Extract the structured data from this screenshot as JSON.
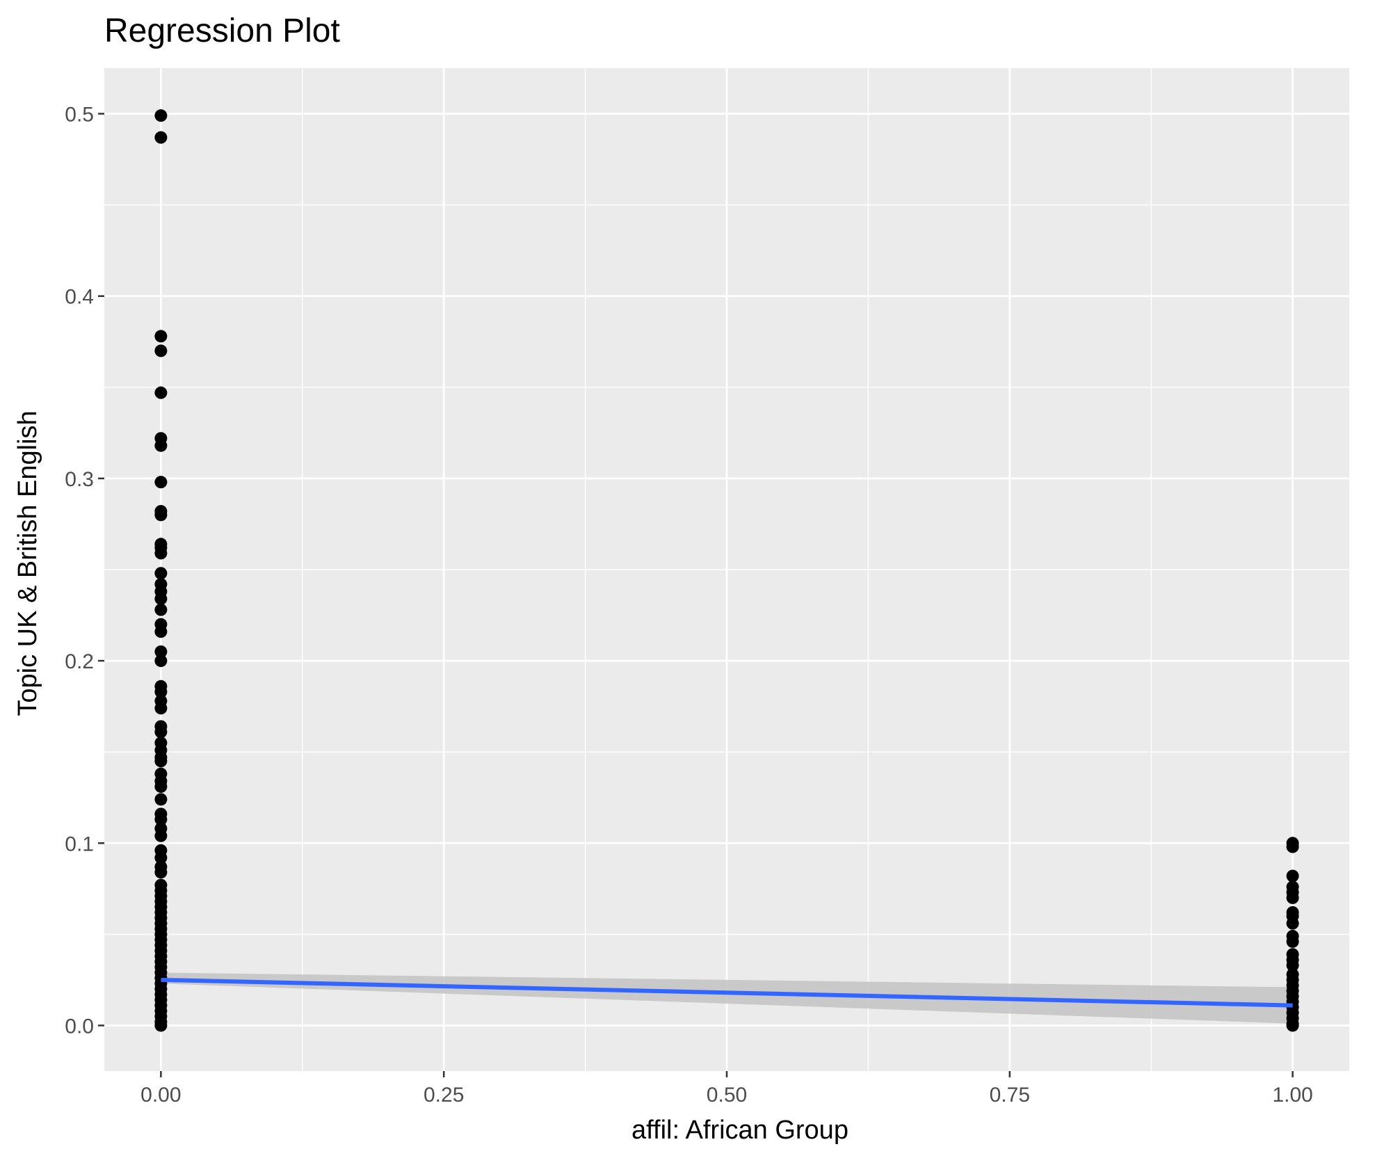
{
  "chart_data": {
    "type": "scatter",
    "title": "Regression Plot",
    "xlabel": "affil: African Group",
    "ylabel": "Topic UK & British English",
    "xlim": [
      -0.05,
      1.05
    ],
    "ylim": [
      -0.025,
      0.525
    ],
    "x_ticks": [
      0.0,
      0.25,
      0.5,
      0.75,
      1.0
    ],
    "x_tick_labels": [
      "0.00",
      "0.25",
      "0.50",
      "0.75",
      "1.00"
    ],
    "y_ticks": [
      0.0,
      0.1,
      0.2,
      0.3,
      0.4,
      0.5
    ],
    "y_tick_labels": [
      "0.0",
      "0.1",
      "0.2",
      "0.3",
      "0.4",
      "0.5"
    ],
    "grid": true,
    "series": [
      {
        "x": 0.0,
        "y": [
          0.499,
          0.487,
          0.378,
          0.37,
          0.347,
          0.322,
          0.318,
          0.298,
          0.282,
          0.28,
          0.264,
          0.262,
          0.259,
          0.248,
          0.242,
          0.238,
          0.234,
          0.228,
          0.22,
          0.216,
          0.205,
          0.2,
          0.186,
          0.183,
          0.178,
          0.174,
          0.164,
          0.161,
          0.155,
          0.151,
          0.147,
          0.145,
          0.138,
          0.134,
          0.131,
          0.124,
          0.116,
          0.113,
          0.108,
          0.104,
          0.096,
          0.092,
          0.087,
          0.084,
          0.077,
          0.074,
          0.071,
          0.068,
          0.065,
          0.062,
          0.059,
          0.056,
          0.053,
          0.05,
          0.047,
          0.044,
          0.041,
          0.038,
          0.035,
          0.032,
          0.029,
          0.026,
          0.023,
          0.02,
          0.017,
          0.014,
          0.011,
          0.008,
          0.005,
          0.002,
          0.0
        ]
      },
      {
        "x": 1.0,
        "y": [
          0.1,
          0.098,
          0.082,
          0.076,
          0.073,
          0.07,
          0.062,
          0.06,
          0.056,
          0.049,
          0.046,
          0.039,
          0.036,
          0.033,
          0.028,
          0.025,
          0.022,
          0.019,
          0.016,
          0.013,
          0.01,
          0.007,
          0.004,
          0.001,
          0.0
        ]
      }
    ],
    "regression": {
      "x": [
        0.0,
        1.0
      ],
      "y": [
        0.025,
        0.011
      ],
      "ci_lower": [
        0.023,
        0.001
      ],
      "ci_upper": [
        0.029,
        0.021
      ],
      "color": "#3366FF",
      "ci_color": "#c3c3c3"
    },
    "colors": {
      "panel": "#EBEBEB",
      "grid": "#FFFFFF",
      "point": "#000000"
    }
  }
}
